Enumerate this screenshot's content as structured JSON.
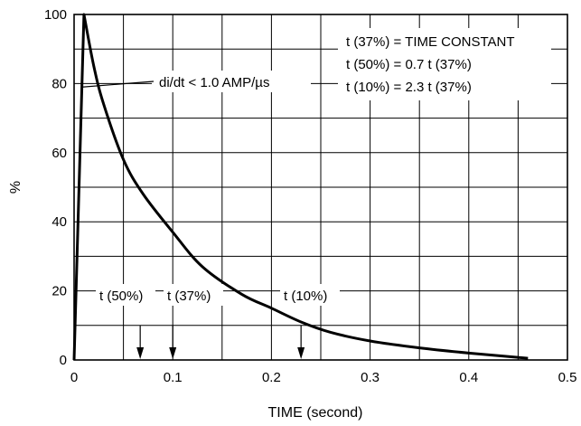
{
  "chart_data": {
    "type": "line",
    "xlabel": "TIME (second)",
    "ylabel": "%",
    "xlim": [
      0,
      0.5
    ],
    "ylim": [
      0,
      100
    ],
    "x_ticks": [
      "0",
      "0.1",
      "0.2",
      "0.3",
      "0.4",
      "0.5"
    ],
    "y_ticks": [
      "0",
      "20",
      "40",
      "60",
      "80",
      "100"
    ],
    "grid": true,
    "series": [
      {
        "points": [
          [
            0,
            0
          ],
          [
            0.01,
            100
          ],
          [
            0.02,
            85
          ],
          [
            0.03,
            74
          ],
          [
            0.05,
            58
          ],
          [
            0.07,
            48
          ],
          [
            0.1,
            37
          ],
          [
            0.13,
            27
          ],
          [
            0.17,
            19
          ],
          [
            0.2,
            15
          ],
          [
            0.23,
            11
          ],
          [
            0.26,
            8
          ],
          [
            0.3,
            5.5
          ],
          [
            0.35,
            3.5
          ],
          [
            0.4,
            2
          ],
          [
            0.46,
            0.5
          ]
        ]
      }
    ],
    "legend_box": {
      "lines": [
        "t (37%) = TIME CONSTANT",
        "t (50%) = 0.7 t (37%)",
        "t (10%) = 2.3 t (37%)"
      ]
    },
    "annotations": [
      {
        "id": "didt",
        "text": "di/dt < 1.0 AMP/µs",
        "x": 0.01,
        "y": 79
      },
      {
        "id": "t50",
        "text": "t (50%)",
        "x": 0.067,
        "y": 0
      },
      {
        "id": "t37",
        "text": "t (37%)",
        "x": 0.1,
        "y": 0
      },
      {
        "id": "t10",
        "text": "t (10%)",
        "x": 0.23,
        "y": 0
      }
    ]
  }
}
